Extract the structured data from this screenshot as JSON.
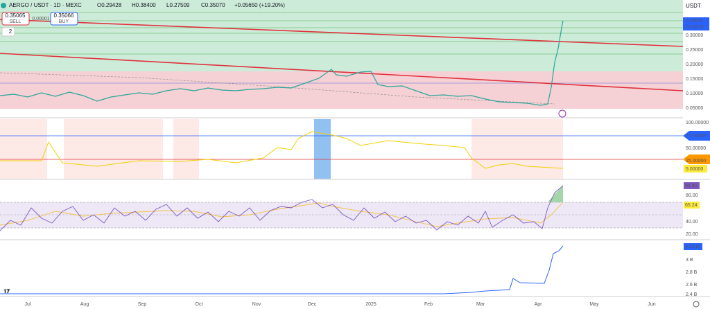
{
  "header": {
    "symbol": "AERGO / USDT · 1D · MEXC",
    "open": "O0.29428",
    "high": "H0.38400",
    "low": "L0.27509",
    "close": "C0.35070",
    "change": "+0.05650 (+19.20%)"
  },
  "trade": {
    "sell_price": "0.35065",
    "sell_label": "SELL",
    "spread": "0.00001",
    "buy_price": "0.35066",
    "buy_label": "BUY"
  },
  "indicator_count": "2",
  "price_axis": {
    "currency": "USDT",
    "last_price": "0.35070",
    "countdown": "07:09:37",
    "labels": [
      "0.30000",
      "0.25000",
      "0.20000",
      "0.15000",
      "0.10000",
      "0.05000"
    ]
  },
  "stoch_axis": {
    "labels": [
      "100.00000",
      "75.00000",
      "50.00000",
      "25.00000"
    ],
    "value": "5.00000"
  },
  "rsi_axis": {
    "labels": [
      "80.00",
      "40.00",
      "20.00"
    ],
    "value": "94.90",
    "ma": "65.24"
  },
  "volume_axis": {
    "value": "3.23 B",
    "labels": [
      "3 B",
      "2.8 B",
      "2.6 B",
      "2.4 B"
    ]
  },
  "time_axis": [
    "Jul",
    "Aug",
    "Sep",
    "Oct",
    "Nov",
    "Dec",
    "2025",
    "Feb",
    "Mar",
    "Apr",
    "May",
    "Jun"
  ]
}
